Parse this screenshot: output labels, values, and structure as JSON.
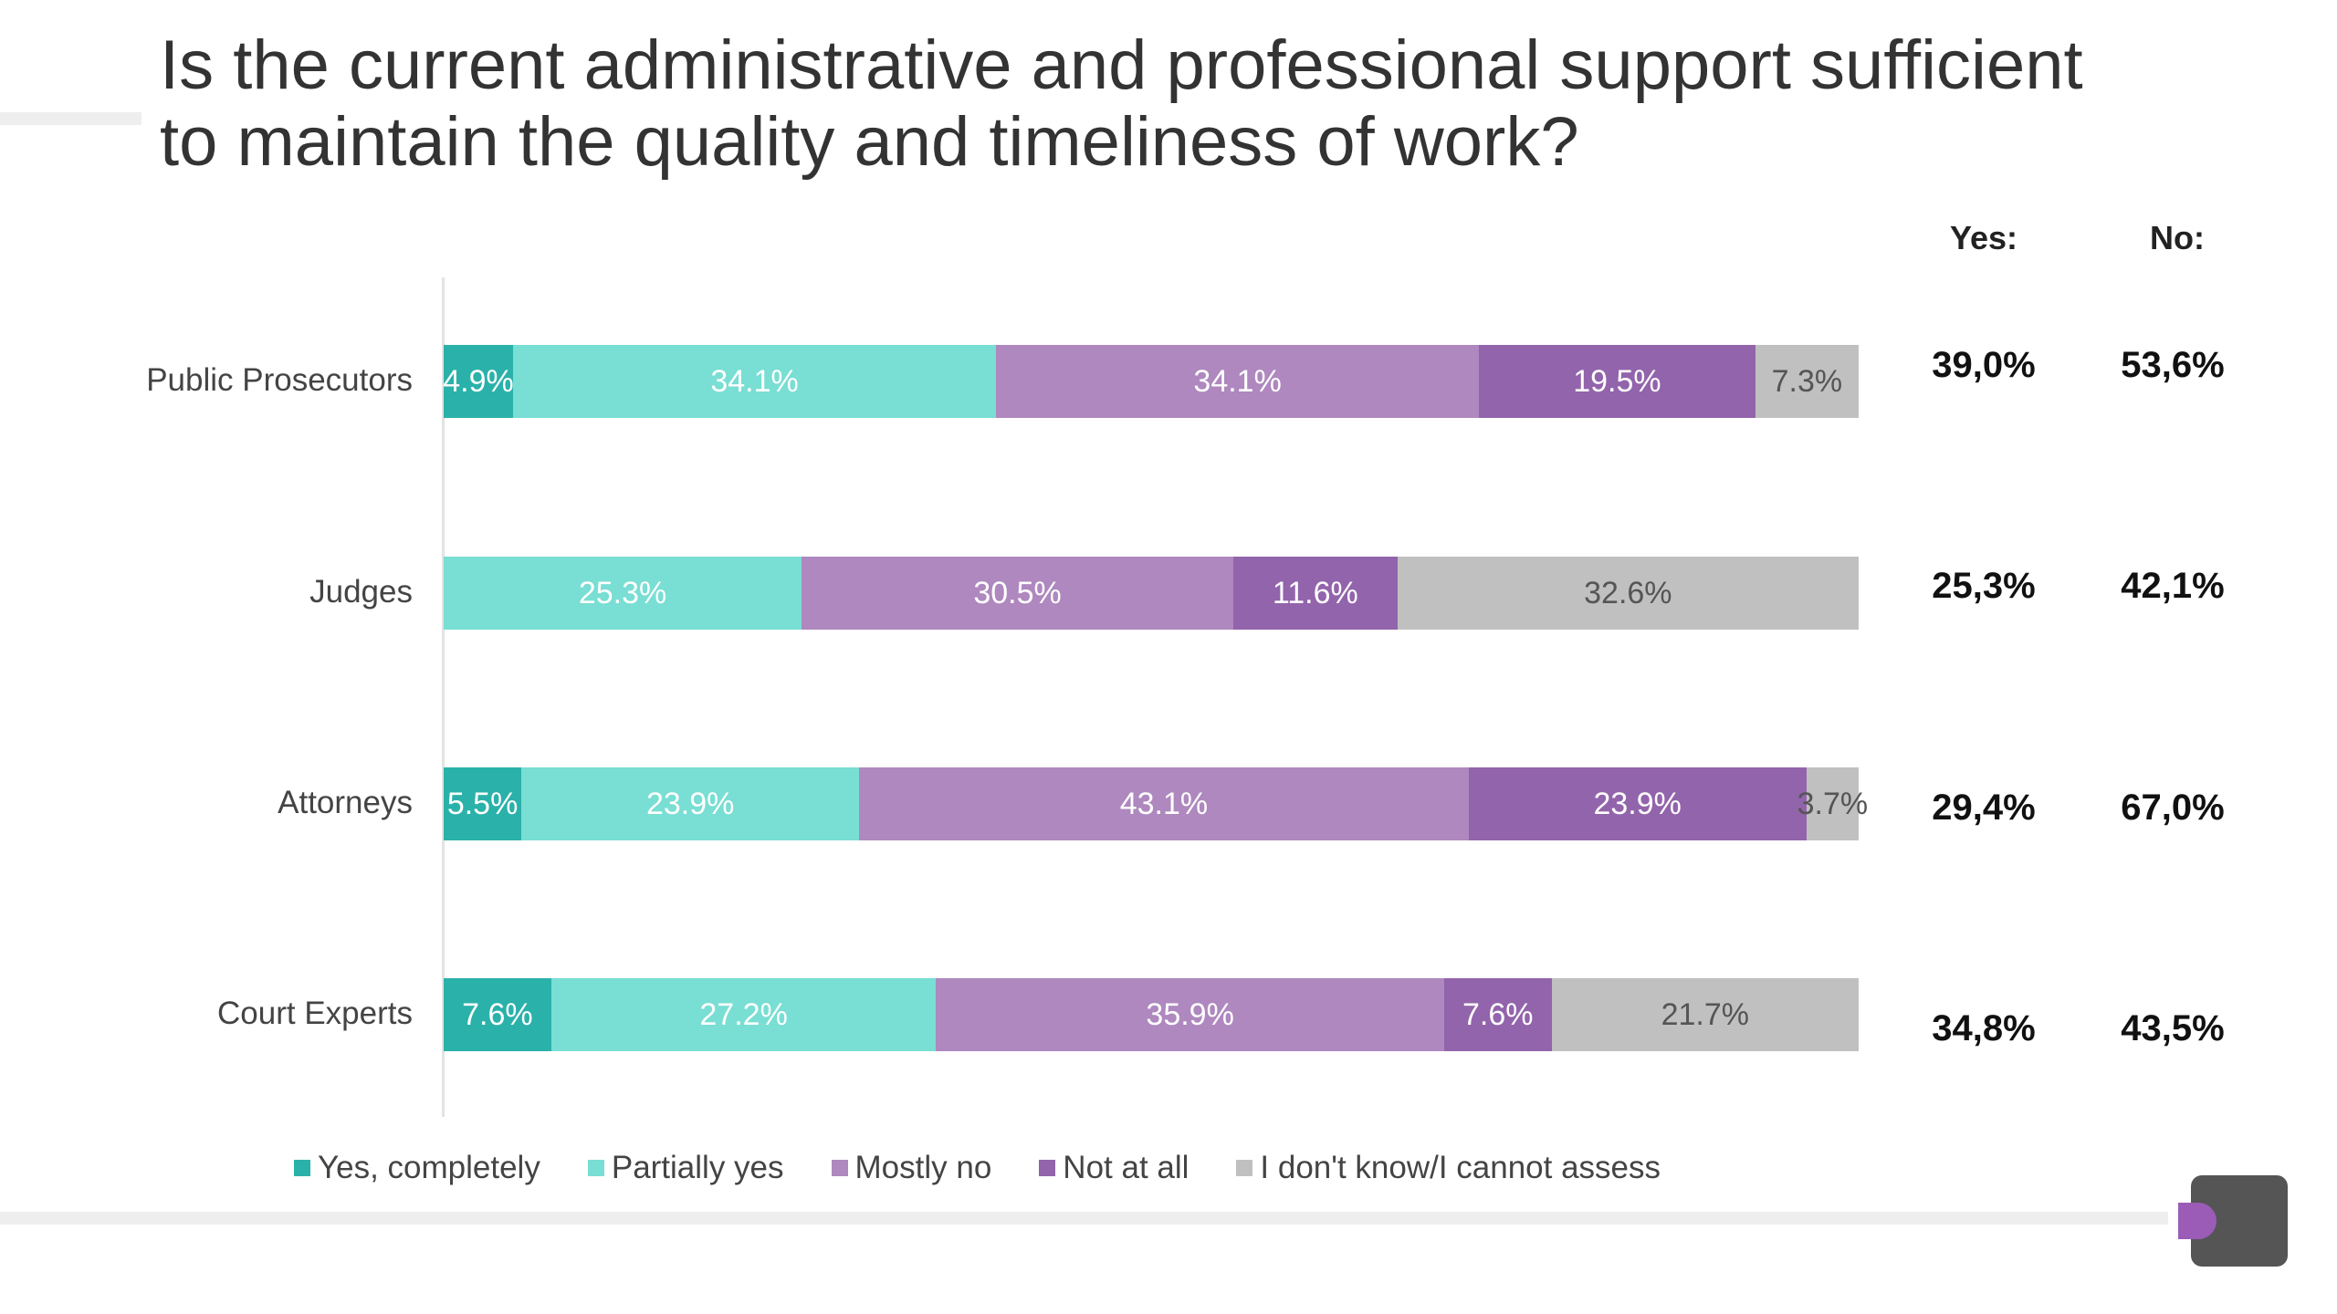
{
  "title_line1": "Is the current administrative and professional support sufficient",
  "title_line2": "to maintain the quality and timeliness of work?",
  "summary": {
    "yes_header": "Yes:",
    "no_header": "No:",
    "rows": [
      {
        "yes": "39,0%",
        "no": "53,6%"
      },
      {
        "yes": "25,3%",
        "no": "42,1%"
      },
      {
        "yes": "29,4%",
        "no": "67,0%"
      },
      {
        "yes": "34,8%",
        "no": "43,5%"
      }
    ]
  },
  "colors": {
    "yes_completely": "#2ab1aa",
    "partially_yes": "#79ded3",
    "mostly_no": "#ae88be",
    "not_at_all": "#9264ab",
    "unknown": "#c0c0c0",
    "logo_body": "#555555",
    "logo_accent": "#9b5cb8"
  },
  "chart_data": {
    "type": "bar",
    "orientation": "horizontal",
    "stacked": true,
    "categories": [
      "Public Prosecutors",
      "Judges",
      "Attorneys",
      "Court Experts"
    ],
    "series": [
      {
        "name": "Yes, completely",
        "values": [
          4.9,
          0,
          5.5,
          7.6
        ],
        "labels": [
          "4.9%",
          "",
          "5.5%",
          "7.6%"
        ]
      },
      {
        "name": "Partially yes",
        "values": [
          34.1,
          25.3,
          23.9,
          27.2
        ],
        "labels": [
          "34.1%",
          "25.3%",
          "23.9%",
          "27.2%"
        ]
      },
      {
        "name": "Mostly no",
        "values": [
          34.1,
          30.5,
          43.1,
          35.9
        ],
        "labels": [
          "34.1%",
          "30.5%",
          "43.1%",
          "35.9%"
        ]
      },
      {
        "name": "Not at all",
        "values": [
          19.5,
          11.6,
          23.9,
          7.6
        ],
        "labels": [
          "19.5%",
          "11.6%",
          "23.9%",
          "7.6%"
        ]
      },
      {
        "name": "I don't know/I cannot assess",
        "values": [
          7.3,
          32.6,
          3.7,
          21.7
        ],
        "labels": [
          "7.3%",
          "32.6%",
          "3.7%",
          "21.7%"
        ]
      }
    ],
    "xlim": [
      0,
      100
    ],
    "legend_position": "bottom",
    "grid": false
  }
}
